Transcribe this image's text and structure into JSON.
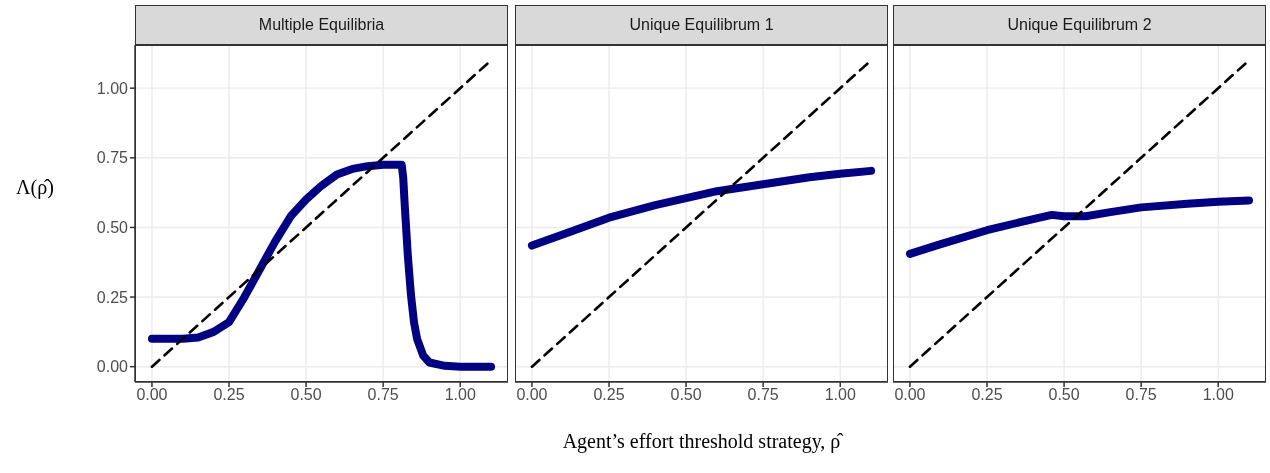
{
  "chart_data": [
    {
      "type": "line",
      "title": "Multiple Equilibria",
      "ylabel": "Λ(ρ̂)",
      "xlim": [
        -0.055,
        1.155
      ],
      "ylim": [
        -0.055,
        1.155
      ],
      "xticks": [
        {
          "value": 0,
          "label": "0.00"
        },
        {
          "value": 0.25,
          "label": "0.25"
        },
        {
          "value": 0.5,
          "label": "0.50"
        },
        {
          "value": 0.75,
          "label": "0.75"
        },
        {
          "value": 1,
          "label": "1.00"
        }
      ],
      "yticks": [
        {
          "value": 0,
          "label": "0.00"
        },
        {
          "value": 0.25,
          "label": "0.25"
        },
        {
          "value": 0.5,
          "label": "0.50"
        },
        {
          "value": 0.75,
          "label": "0.75"
        },
        {
          "value": 1,
          "label": "1.00"
        }
      ],
      "grid": true,
      "series": [
        {
          "color": "#000080",
          "line_style": "solid",
          "x": [
            0,
            0.05,
            0.1,
            0.15,
            0.2,
            0.25,
            0.3,
            0.35,
            0.4,
            0.45,
            0.5,
            0.55,
            0.6,
            0.65,
            0.7,
            0.75,
            0.81,
            0.815,
            0.82,
            0.83,
            0.84,
            0.85,
            0.86,
            0.88,
            0.9,
            0.95,
            1,
            1.05,
            1.1
          ],
          "values": [
            0.1,
            0.1,
            0.1,
            0.105,
            0.125,
            0.16,
            0.25,
            0.35,
            0.45,
            0.54,
            0.6,
            0.65,
            0.69,
            0.71,
            0.72,
            0.725,
            0.725,
            0.68,
            0.58,
            0.4,
            0.26,
            0.16,
            0.1,
            0.04,
            0.015,
            0.003,
            0,
            0,
            0
          ]
        },
        {
          "color": "#000000",
          "line_style": "dashed",
          "x": [
            0,
            1.1
          ],
          "values": [
            0,
            1.1
          ]
        }
      ]
    },
    {
      "type": "line",
      "title": "Unique Equilibrum 1",
      "xlabel": "Agent’s effort threshold strategy, ρ̂",
      "xlim": [
        -0.055,
        1.155
      ],
      "ylim": [
        -0.055,
        1.155
      ],
      "xticks": [
        {
          "value": 0,
          "label": "0.00"
        },
        {
          "value": 0.25,
          "label": "0.25"
        },
        {
          "value": 0.5,
          "label": "0.50"
        },
        {
          "value": 0.75,
          "label": "0.75"
        },
        {
          "value": 1,
          "label": "1.00"
        }
      ],
      "yticks": [
        0,
        0.25,
        0.5,
        0.75,
        1
      ],
      "grid": true,
      "tick_labels": "x",
      "series": [
        {
          "color": "#000080",
          "line_style": "solid",
          "x": [
            0,
            0.1,
            0.25,
            0.4,
            0.5,
            0.6,
            0.75,
            0.9,
            1,
            1.1
          ],
          "values": [
            0.435,
            0.475,
            0.535,
            0.58,
            0.605,
            0.63,
            0.655,
            0.68,
            0.693,
            0.703
          ]
        },
        {
          "color": "#000000",
          "line_style": "dashed",
          "x": [
            0,
            1.1
          ],
          "values": [
            0,
            1.1
          ]
        }
      ]
    },
    {
      "type": "line",
      "title": "Unique Equilibrum 2",
      "xlim": [
        -0.055,
        1.155
      ],
      "ylim": [
        -0.055,
        1.155
      ],
      "xticks": [
        {
          "value": 0,
          "label": "0.00"
        },
        {
          "value": 0.25,
          "label": "0.25"
        },
        {
          "value": 0.5,
          "label": "0.50"
        },
        {
          "value": 0.75,
          "label": "0.75"
        },
        {
          "value": 1,
          "label": "1.00"
        }
      ],
      "yticks": [
        0,
        0.25,
        0.5,
        0.75,
        1
      ],
      "grid": true,
      "tick_labels": "x",
      "series": [
        {
          "color": "#000080",
          "line_style": "solid",
          "x": [
            0,
            0.1,
            0.25,
            0.4,
            0.46,
            0.5,
            0.57,
            0.65,
            0.75,
            0.9,
            1,
            1.1
          ],
          "values": [
            0.405,
            0.44,
            0.49,
            0.53,
            0.545,
            0.54,
            0.54,
            0.555,
            0.572,
            0.585,
            0.592,
            0.597
          ]
        },
        {
          "color": "#000000",
          "line_style": "dashed",
          "x": [
            0,
            1.1
          ],
          "values": [
            0,
            1.1
          ]
        }
      ]
    }
  ]
}
